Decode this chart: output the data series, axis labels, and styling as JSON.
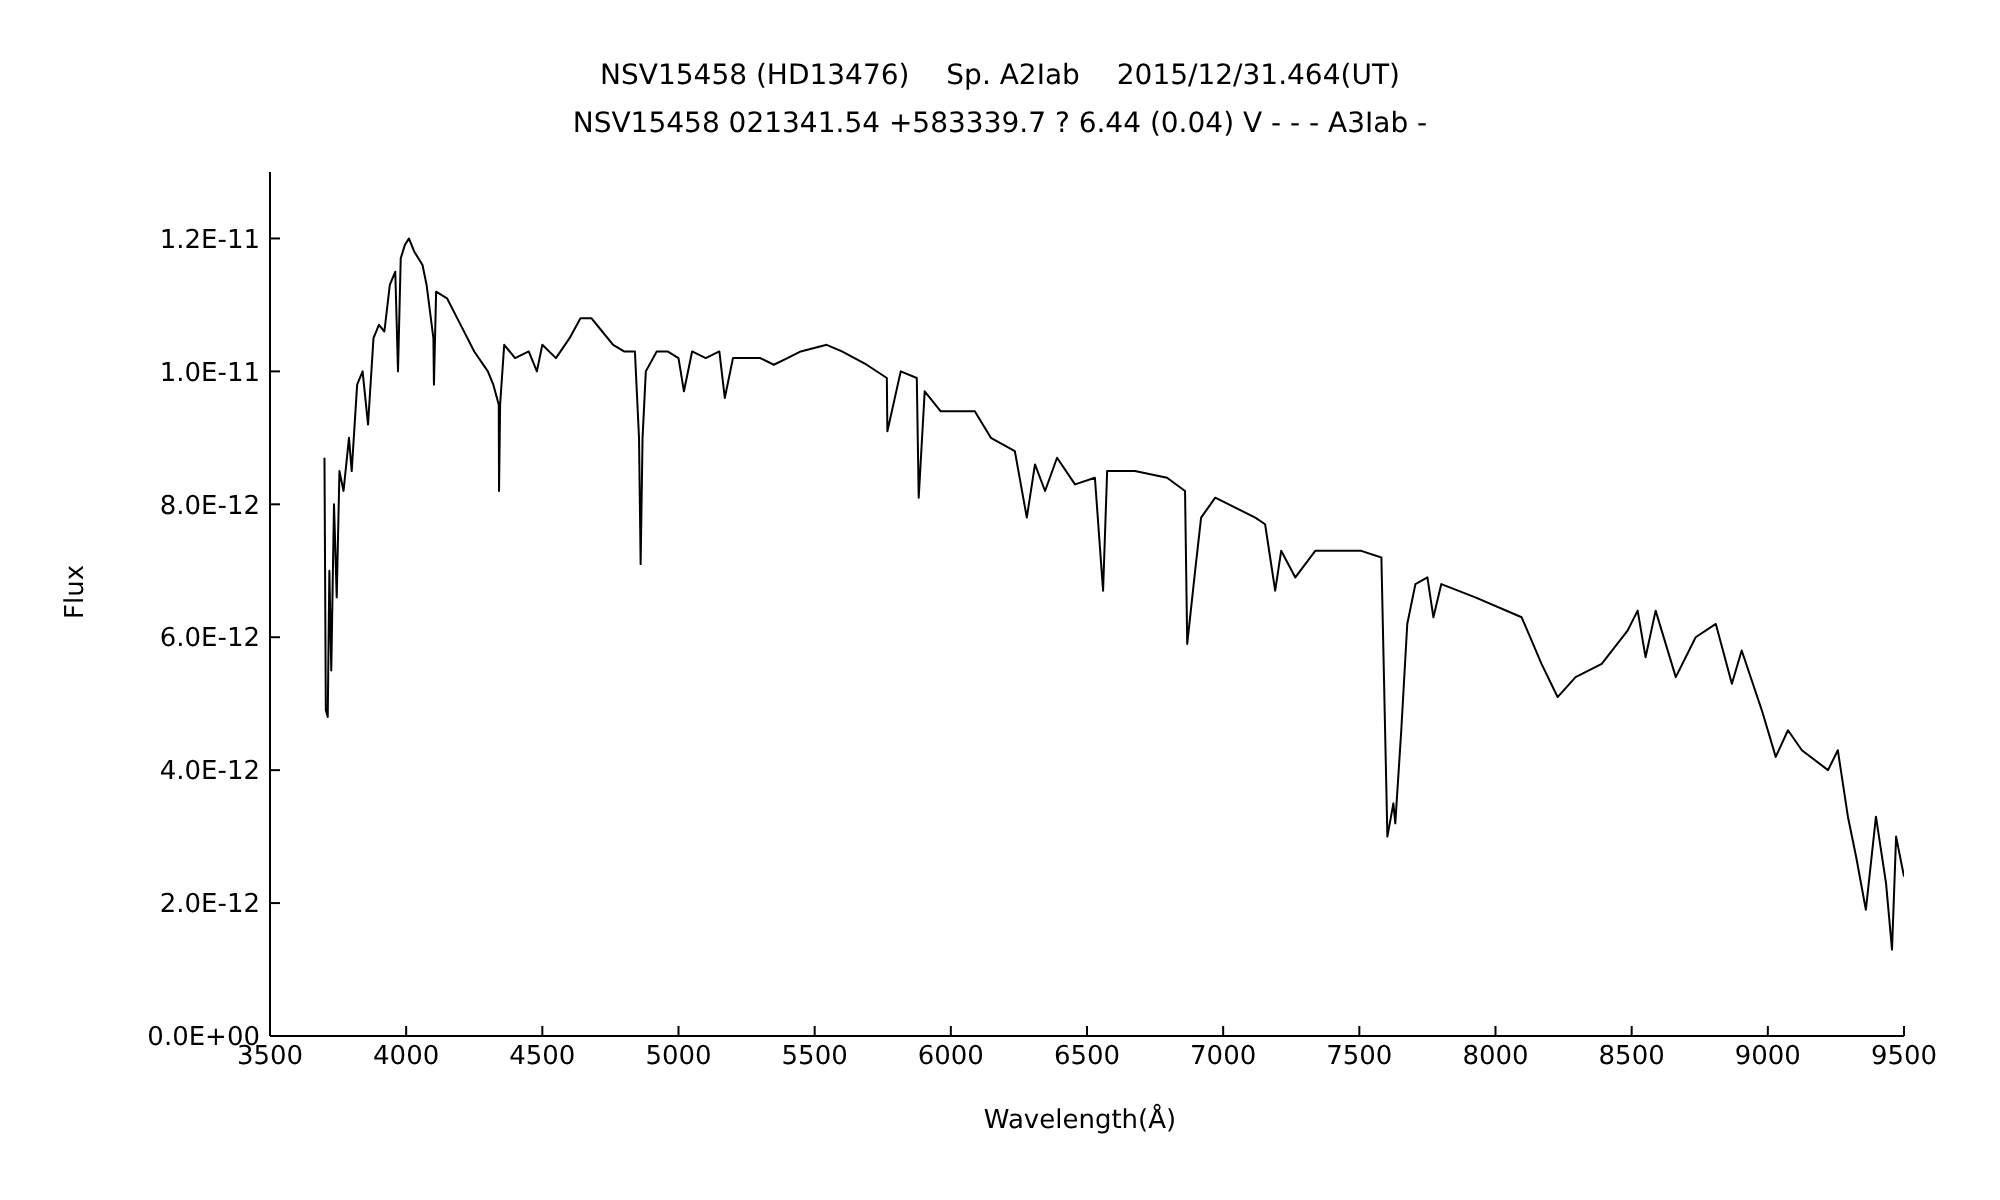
{
  "chart_data": {
    "type": "line",
    "title": "NSV15458 (HD13476)　 Sp. A2Iab　 2015/12/31.464(UT)",
    "subtitle": "NSV15458 021341.54 +583339.7 ? 6.44 (0.04) V - - - A3Iab -",
    "xlabel": "Wavelength(Å)",
    "ylabel": "Flux",
    "x": [
      3700,
      3705,
      3712,
      3718,
      3725,
      3735,
      3745,
      3755,
      3770,
      3790,
      3800,
      3820,
      3840,
      3860,
      3880,
      3900,
      3920,
      3940,
      3960,
      3970,
      3980,
      3995,
      4010,
      4030,
      4060,
      4075,
      4100,
      4102,
      4110,
      4150,
      4200,
      4250,
      4300,
      4320,
      4340,
      4341,
      4345,
      4360,
      4400,
      4450,
      4480,
      4500,
      4550,
      4600,
      4640,
      4680,
      4720,
      4760,
      4800,
      4840,
      4855,
      4861,
      4868,
      4880,
      4920,
      4960,
      5000,
      5020,
      5050,
      5100,
      5150,
      5170,
      5200,
      5250,
      5300,
      5350,
      5400,
      5449,
      5544,
      5600,
      5691,
      5765,
      5767,
      5816,
      5875,
      5882,
      5904,
      5963,
      6088,
      6147,
      6235,
      6279,
      6309,
      6346,
      6390,
      6456,
      6529,
      6559,
      6574,
      6676,
      6794,
      6860,
      6868,
      6897,
      6919,
      6971,
      7118,
      7154,
      7191,
      7213,
      7265,
      7338,
      7412,
      7507,
      7581,
      7603,
      7625,
      7632,
      7654,
      7676,
      7706,
      7750,
      7772,
      7801,
      7926,
      8096,
      8169,
      8228,
      8294,
      8390,
      8485,
      8522,
      8551,
      8588,
      8662,
      8735,
      8809,
      8868,
      8904,
      8978,
      9029,
      9074,
      9125,
      9221,
      9257,
      9294,
      9324,
      9360,
      9397,
      9434,
      9456,
      9471,
      9500
    ],
    "series": [
      {
        "color": "#000000",
        "values": [
          8.7e-12,
          4.9e-12,
          4.8e-12,
          7e-12,
          5.5e-12,
          8e-12,
          6.6e-12,
          8.5e-12,
          8.2e-12,
          9e-12,
          8.5e-12,
          9.8e-12,
          1e-11,
          9.2e-12,
          1.05e-11,
          1.07e-11,
          1.06e-11,
          1.13e-11,
          1.15e-11,
          1e-11,
          1.17e-11,
          1.19e-11,
          1.2e-11,
          1.18e-11,
          1.16e-11,
          1.13e-11,
          1.05e-11,
          9.8e-12,
          1.12e-11,
          1.11e-11,
          1.07e-11,
          1.03e-11,
          1e-11,
          9.8e-12,
          9.5e-12,
          8.2e-12,
          9.5e-12,
          1.04e-11,
          1.02e-11,
          1.03e-11,
          1e-11,
          1.04e-11,
          1.02e-11,
          1.05e-11,
          1.08e-11,
          1.08e-11,
          1.06e-11,
          1.04e-11,
          1.03e-11,
          1.03e-11,
          9e-12,
          7.1e-12,
          9e-12,
          1e-11,
          1.03e-11,
          1.03e-11,
          1.02e-11,
          9.7e-12,
          1.03e-11,
          1.02e-11,
          1.03e-11,
          9.6e-12,
          1.02e-11,
          1.02e-11,
          1.02e-11,
          1.01e-11,
          1.02e-11,
          1.03e-11,
          1.04e-11,
          1.03e-11,
          1.01e-11,
          9.9e-12,
          9.1e-12,
          1e-11,
          9.9e-12,
          8.1e-12,
          9.7e-12,
          9.4e-12,
          9.4e-12,
          9e-12,
          8.8e-12,
          7.8e-12,
          8.6e-12,
          8.2e-12,
          8.7e-12,
          8.3e-12,
          8.4e-12,
          6.7e-12,
          8.5e-12,
          8.5e-12,
          8.4e-12,
          8.2e-12,
          5.9e-12,
          7e-12,
          7.8e-12,
          8.1e-12,
          7.8e-12,
          7.7e-12,
          6.7e-12,
          7.3e-12,
          6.9e-12,
          7.3e-12,
          7.3e-12,
          7.3e-12,
          7.2e-12,
          3e-12,
          3.5e-12,
          3.2e-12,
          4.6e-12,
          6.2e-12,
          6.8e-12,
          6.9e-12,
          6.3e-12,
          6.8e-12,
          6.6e-12,
          6.3e-12,
          5.6e-12,
          5.1e-12,
          5.4e-12,
          5.6e-12,
          6.1e-12,
          6.4e-12,
          5.7e-12,
          6.4e-12,
          5.4e-12,
          6e-12,
          6.2e-12,
          5.3e-12,
          5.8e-12,
          4.9e-12,
          4.2e-12,
          4.6e-12,
          4.3e-12,
          4e-12,
          4.3e-12,
          3.3e-12,
          2.7e-12,
          1.9e-12,
          3.3e-12,
          2.3e-12,
          1.3e-12,
          3e-12,
          2.4e-12
        ]
      }
    ],
    "xlim": [
      3500,
      9500
    ],
    "xticks": [
      3500,
      4000,
      4500,
      5000,
      5500,
      6000,
      6500,
      7000,
      7500,
      8000,
      8500,
      9000,
      9500
    ],
    "ylim": [
      0,
      1.3e-11
    ],
    "yticks": [
      {
        "value": 0,
        "label": "0.0E+00"
      },
      {
        "value": 2e-12,
        "label": "2.0E-12"
      },
      {
        "value": 4e-12,
        "label": "4.0E-12"
      },
      {
        "value": 6e-12,
        "label": "6.0E-12"
      },
      {
        "value": 8e-12,
        "label": "8.0E-12"
      },
      {
        "value": 1e-11,
        "label": "1.0E-11"
      },
      {
        "value": 1.2e-11,
        "label": "1.2E-11"
      }
    ]
  }
}
